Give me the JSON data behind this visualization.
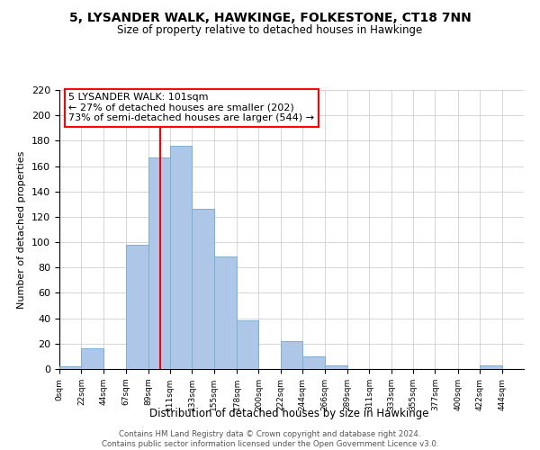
{
  "title": "5, LYSANDER WALK, HAWKINGE, FOLKESTONE, CT18 7NN",
  "subtitle": "Size of property relative to detached houses in Hawkinge",
  "xlabel": "Distribution of detached houses by size in Hawkinge",
  "ylabel": "Number of detached properties",
  "bar_left_edges": [
    0,
    22,
    44,
    67,
    89,
    111,
    133,
    155,
    178,
    200,
    222,
    244,
    266,
    289,
    311,
    333,
    355,
    377,
    400,
    422
  ],
  "bar_widths": [
    22,
    22,
    23,
    22,
    22,
    22,
    22,
    23,
    22,
    22,
    22,
    22,
    23,
    22,
    22,
    22,
    22,
    23,
    22,
    22
  ],
  "bar_heights": [
    2,
    16,
    0,
    98,
    167,
    176,
    126,
    89,
    38,
    0,
    22,
    10,
    3,
    0,
    0,
    0,
    0,
    0,
    0,
    3
  ],
  "bar_color": "#aec6e8",
  "bar_edgecolor": "#7aafd4",
  "tick_labels": [
    "0sqm",
    "22sqm",
    "44sqm",
    "67sqm",
    "89sqm",
    "111sqm",
    "133sqm",
    "155sqm",
    "178sqm",
    "200sqm",
    "222sqm",
    "244sqm",
    "266sqm",
    "289sqm",
    "311sqm",
    "333sqm",
    "355sqm",
    "377sqm",
    "400sqm",
    "422sqm",
    "444sqm"
  ],
  "ylim": [
    0,
    220
  ],
  "yticks": [
    0,
    20,
    40,
    60,
    80,
    100,
    120,
    140,
    160,
    180,
    200,
    220
  ],
  "vline_x": 101,
  "vline_color": "red",
  "ann_line1": "5 LYSANDER WALK: 101sqm",
  "ann_line2": "← 27% of detached houses are smaller (202)",
  "ann_line3": "73% of semi-detached houses are larger (544) →",
  "footer_line1": "Contains HM Land Registry data © Crown copyright and database right 2024.",
  "footer_line2": "Contains public sector information licensed under the Open Government Licence v3.0.",
  "background_color": "#ffffff",
  "grid_color": "#d0d0d0",
  "xlim_max": 466
}
